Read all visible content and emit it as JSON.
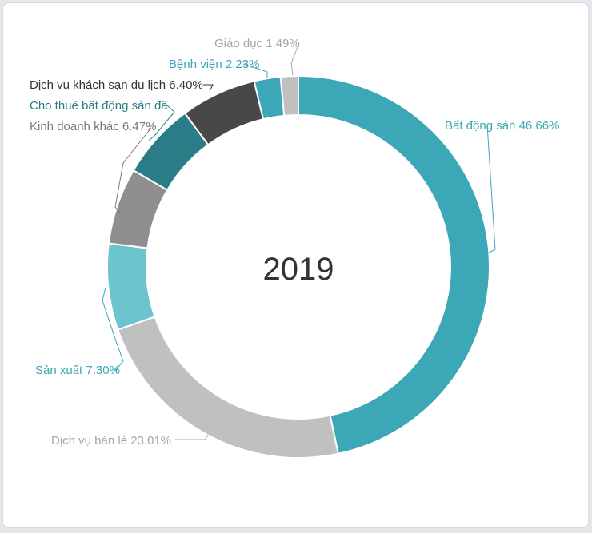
{
  "chart_data": {
    "type": "pie",
    "variant": "donut",
    "center_label": "2019",
    "slices": [
      {
        "label": "Bất động sản 46.66%",
        "value": 46.66,
        "color": "#3ba7b7",
        "label_color": "#3ba7b7"
      },
      {
        "label": "Dịch vụ bán lẻ 23.01%",
        "value": 23.01,
        "color": "#c0c0c0",
        "label_color": "#a6a6a6"
      },
      {
        "label": "Sản xuất 7.30%",
        "value": 7.3,
        "color": "#6cc4cf",
        "label_color": "#3ba7b7"
      },
      {
        "label": "Kinh doanh khác 6.47%",
        "value": 6.47,
        "color": "#8f8f8f",
        "label_color": "#7a7a7a"
      },
      {
        "label": "Cho thuê bất động sản đầ",
        "value": 6.44,
        "color": "#2a7c86",
        "label_color": "#2a7c86"
      },
      {
        "label": "Dịch vụ khách sạn du lịch 6.40%",
        "value": 6.4,
        "color": "#484848",
        "label_color": "#333333"
      },
      {
        "label": "Bệnh viện 2.23%",
        "value": 2.23,
        "color": "#3ba7b7",
        "label_color": "#3ba7b7"
      },
      {
        "label": "Giáo dục 1.49%",
        "value": 1.49,
        "color": "#c0c0c0",
        "label_color": "#a6a6a6"
      }
    ]
  }
}
